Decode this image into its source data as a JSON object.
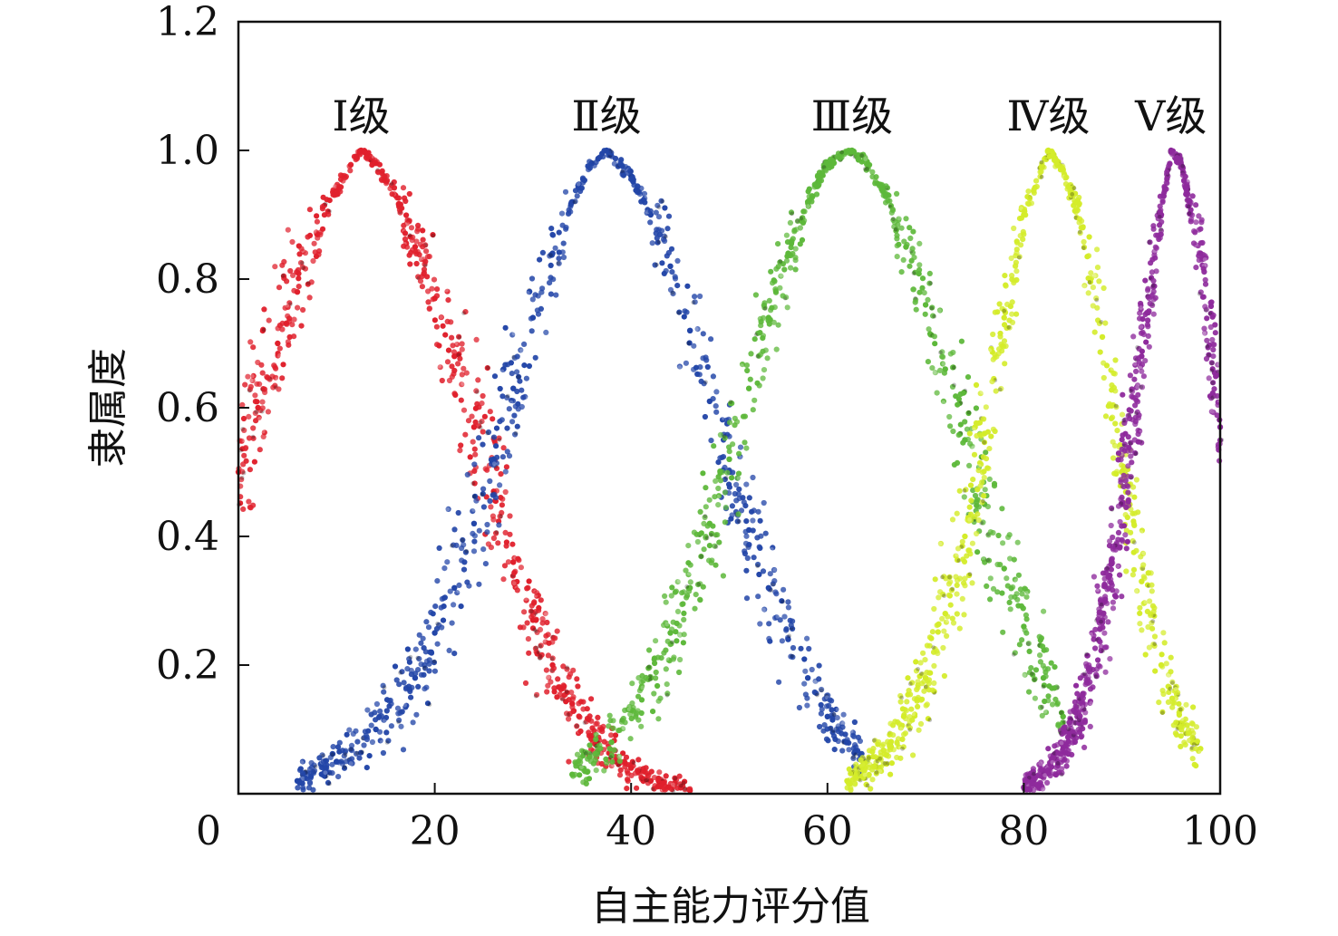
{
  "chart_data": {
    "type": "scatter",
    "title": "",
    "xlabel": "自主能力评分值",
    "ylabel": "隶属度",
    "xlim": [
      0,
      100
    ],
    "ylim": [
      0,
      1.2
    ],
    "x_ticks": [
      0,
      20,
      40,
      60,
      80,
      100
    ],
    "x_tick_labels": [
      "0",
      "20",
      "40",
      "60",
      "80",
      "100"
    ],
    "y_ticks": [
      0.2,
      0.4,
      0.6,
      0.8,
      1.0,
      1.2
    ],
    "y_tick_labels": [
      "0.2",
      "0.4",
      "0.6",
      "0.8",
      "1.0",
      "1.2"
    ],
    "grid": false,
    "legend": "none",
    "series": [
      {
        "name": "Ⅰ级",
        "color": "#e0202c",
        "center": 12.5,
        "width": 7.5,
        "x": [
          0,
          2,
          4,
          6,
          8,
          10,
          12,
          12.5,
          14,
          16,
          18,
          20,
          22,
          24,
          26,
          28,
          30,
          32,
          34,
          36,
          38,
          40,
          42,
          44,
          46
        ],
        "y": [
          0.5,
          0.6,
          0.7,
          0.78,
          0.87,
          0.94,
          0.99,
          1.0,
          0.98,
          0.93,
          0.85,
          0.77,
          0.68,
          0.57,
          0.47,
          0.36,
          0.27,
          0.2,
          0.14,
          0.09,
          0.06,
          0.04,
          0.02,
          0.01,
          0.005
        ]
      },
      {
        "name": "Ⅱ级",
        "color": "#2346a8",
        "center": 37.5,
        "width": 8.5,
        "x": [
          6,
          10,
          14,
          18,
          20,
          22,
          24,
          26,
          28,
          30,
          32,
          34,
          36,
          37.5,
          40,
          42,
          44,
          46,
          48,
          50,
          52,
          54,
          56,
          58,
          60,
          62,
          64
        ],
        "y": [
          0.02,
          0.05,
          0.1,
          0.18,
          0.25,
          0.32,
          0.42,
          0.52,
          0.63,
          0.74,
          0.84,
          0.92,
          0.98,
          1.0,
          0.96,
          0.9,
          0.82,
          0.72,
          0.61,
          0.5,
          0.41,
          0.32,
          0.24,
          0.18,
          0.12,
          0.08,
          0.05
        ]
      },
      {
        "name": "Ⅲ级",
        "color": "#5db83a",
        "center": 62.5,
        "width": 8.0,
        "x": [
          34,
          38,
          40,
          42,
          44,
          46,
          48,
          50,
          52,
          54,
          56,
          58,
          60,
          62.5,
          64,
          66,
          68,
          70,
          72,
          74,
          76,
          78,
          80,
          82,
          84
        ],
        "y": [
          0.03,
          0.08,
          0.13,
          0.18,
          0.25,
          0.32,
          0.42,
          0.52,
          0.63,
          0.74,
          0.84,
          0.92,
          0.98,
          1.0,
          0.98,
          0.93,
          0.85,
          0.76,
          0.66,
          0.55,
          0.45,
          0.35,
          0.26,
          0.18,
          0.12
        ]
      },
      {
        "name": "Ⅳ级",
        "color": "#d4ec2a",
        "center": 82.5,
        "width": 5.5,
        "x": [
          62,
          66,
          70,
          72,
          74,
          76,
          78,
          80,
          82.5,
          84,
          86,
          88,
          90,
          92,
          94,
          96,
          98
        ],
        "y": [
          0.02,
          0.06,
          0.18,
          0.28,
          0.4,
          0.56,
          0.74,
          0.9,
          1.0,
          0.97,
          0.88,
          0.71,
          0.5,
          0.33,
          0.2,
          0.11,
          0.07
        ]
      },
      {
        "name": "Ⅴ级",
        "color": "#8e2a9c",
        "center": 95,
        "width": 4.5,
        "x": [
          80,
          82,
          84,
          86,
          88,
          90,
          92,
          94,
          95,
          96,
          98,
          100
        ],
        "y": [
          0.01,
          0.03,
          0.07,
          0.14,
          0.27,
          0.45,
          0.68,
          0.9,
          1.0,
          0.98,
          0.84,
          0.57
        ]
      }
    ]
  }
}
